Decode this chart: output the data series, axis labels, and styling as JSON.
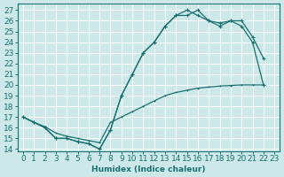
{
  "xlabel": "Humidex (Indice chaleur)",
  "background_color": "#cce8e8",
  "line_color": "#1a7070",
  "grid_color": "#ffffff",
  "xlim": [
    -0.5,
    23.5
  ],
  "ylim": [
    13.8,
    27.6
  ],
  "yticks": [
    14,
    15,
    16,
    17,
    18,
    19,
    20,
    21,
    22,
    23,
    24,
    25,
    26,
    27
  ],
  "xticks": [
    0,
    1,
    2,
    3,
    4,
    5,
    6,
    7,
    8,
    9,
    10,
    11,
    12,
    13,
    14,
    15,
    16,
    17,
    18,
    19,
    20,
    21,
    22,
    23
  ],
  "line1_x": [
    0,
    1,
    2,
    3,
    4,
    5,
    6,
    7,
    8,
    9,
    10,
    11,
    12,
    13,
    14,
    15,
    16,
    17,
    18,
    19,
    20,
    21,
    22
  ],
  "line1_y": [
    17.0,
    16.5,
    16.0,
    15.0,
    15.0,
    14.7,
    14.5,
    14.0,
    15.8,
    19.0,
    21.0,
    23.0,
    24.0,
    25.5,
    26.5,
    27.0,
    26.5,
    26.0,
    25.8,
    26.0,
    26.0,
    24.5,
    22.5
  ],
  "line2_x": [
    0,
    1,
    2,
    3,
    4,
    5,
    6,
    7,
    8,
    9,
    10,
    11,
    12,
    13,
    14,
    15,
    16,
    17,
    18,
    19,
    20,
    21,
    22
  ],
  "line2_y": [
    17.0,
    16.5,
    16.0,
    15.0,
    15.0,
    14.7,
    14.5,
    14.0,
    15.8,
    19.0,
    21.0,
    23.0,
    24.0,
    25.5,
    26.5,
    26.5,
    27.0,
    26.0,
    25.5,
    26.0,
    25.5,
    24.0,
    20.0
  ],
  "line3_x": [
    0,
    1,
    2,
    3,
    4,
    5,
    6,
    7,
    8,
    9,
    10,
    11,
    12,
    13,
    14,
    15,
    16,
    17,
    18,
    19,
    20,
    21,
    22
  ],
  "line3_y": [
    17.0,
    16.5,
    16.1,
    15.5,
    15.2,
    15.0,
    14.8,
    14.6,
    16.5,
    17.0,
    17.5,
    18.0,
    18.5,
    19.0,
    19.3,
    19.5,
    19.7,
    19.8,
    19.9,
    19.95,
    20.0,
    20.0,
    20.0
  ],
  "font_size": 6.5,
  "marker_size": 3
}
